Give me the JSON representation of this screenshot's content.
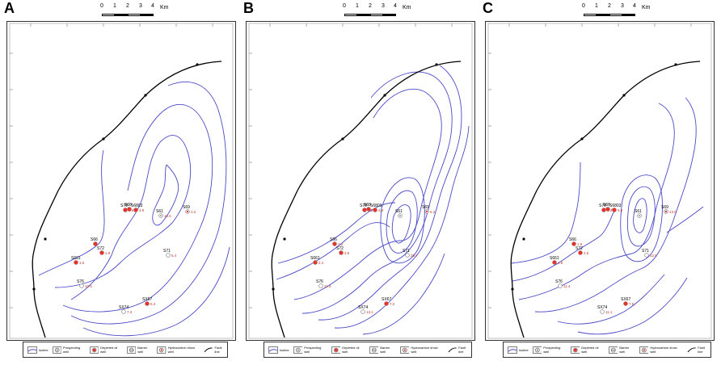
{
  "panels": [
    {
      "letter": "A"
    },
    {
      "letter": "B"
    },
    {
      "letter": "C"
    }
  ],
  "scale_bar": {
    "ticks": [
      "0",
      "1",
      "2",
      "3",
      "4"
    ],
    "unit": "Km"
  },
  "wells": {
    "A": [
      {
        "name": "S70",
        "value": "2.6",
        "type": "depleted"
      },
      {
        "name": "S68",
        "value": "",
        "type": "depleted"
      },
      {
        "name": "S6803",
        "value": "4.9",
        "type": "depleted"
      },
      {
        "name": "S61",
        "value": "10.6",
        "type": "prospecting"
      },
      {
        "name": "S69",
        "value": "3.2",
        "type": "hydrocarbon"
      },
      {
        "name": "S66",
        "value": "",
        "type": "depleted"
      },
      {
        "name": "S72",
        "value": "1.9",
        "type": "depleted"
      },
      {
        "name": "S661",
        "value": "1.5",
        "type": "depleted"
      },
      {
        "name": "S71",
        "value": "5.4",
        "type": "barren"
      },
      {
        "name": "S76",
        "value": "10.5",
        "type": "barren"
      },
      {
        "name": "SX67",
        "value": "6.3",
        "type": "depleted"
      },
      {
        "name": "SX74",
        "value": "7.3",
        "type": "barren"
      }
    ],
    "B": [
      {
        "name": "S70",
        "value": "4.2",
        "type": "depleted"
      },
      {
        "name": "S68",
        "value": "",
        "type": "depleted"
      },
      {
        "name": "S6803",
        "value": "4.9",
        "type": "depleted"
      },
      {
        "name": "S61",
        "value": "",
        "type": "prospecting"
      },
      {
        "name": "S69",
        "value": "5.2",
        "type": "hydrocarbon"
      },
      {
        "name": "S66",
        "value": "2.2",
        "type": "depleted"
      },
      {
        "name": "S72",
        "value": "3.9",
        "type": "depleted"
      },
      {
        "name": "S661",
        "value": "2.4",
        "type": "depleted"
      },
      {
        "name": "S71",
        "value": "20.7",
        "type": "barren"
      },
      {
        "name": "S76",
        "value": "11.4",
        "type": "barren"
      },
      {
        "name": "SX67",
        "value": "7.2",
        "type": "depleted"
      },
      {
        "name": "SX74",
        "value": "13.1",
        "type": "barren"
      }
    ],
    "C": [
      {
        "name": "S70",
        "value": "6.2",
        "type": "depleted"
      },
      {
        "name": "S68",
        "value": "4.7",
        "type": "depleted"
      },
      {
        "name": "S6803",
        "value": "5.9",
        "type": "depleted"
      },
      {
        "name": "S61",
        "value": "",
        "type": "prospecting"
      },
      {
        "name": "S69",
        "value": "13.6",
        "type": "hydrocarbon"
      },
      {
        "name": "S66",
        "value": "1.9",
        "type": "depleted"
      },
      {
        "name": "S72",
        "value": "3.6",
        "type": "depleted"
      },
      {
        "name": "S661",
        "value": "1.8",
        "type": "depleted"
      },
      {
        "name": "S71",
        "value": "12.9",
        "type": "barren"
      },
      {
        "name": "S76",
        "value": "11.4",
        "type": "barren"
      },
      {
        "name": "SX67",
        "value": "7.5",
        "type": "depleted"
      },
      {
        "name": "SX74",
        "value": "11.1",
        "type": "barren"
      }
    ]
  },
  "legend": {
    "isoline": "Isoline",
    "prospecting": "Prospecting well",
    "depleted": "Depleted oil well",
    "barren": "Barren well",
    "hydrocarbon": "Hydrocarbon show well",
    "fault": "Fault line"
  },
  "colors": {
    "isoline": "#4a4ac8",
    "fault": "#000000",
    "depleted_fill": "#e8332c",
    "frame": "#333333"
  }
}
